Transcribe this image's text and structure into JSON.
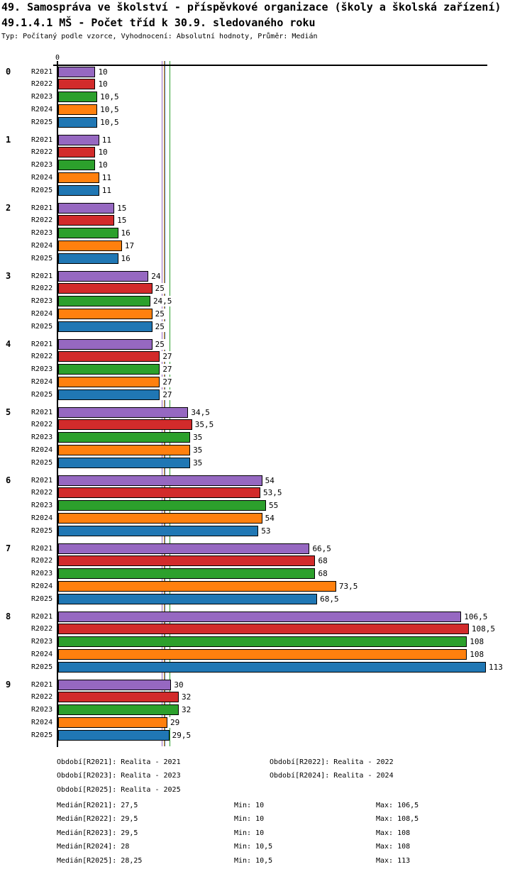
{
  "header": {
    "title1": "49. Samospráva ve školství - příspěvkové organizace (školy a školská zařízení)",
    "title2": "49.1.4.1 MŠ - Počet tříd k 30.9. sledovaného roku",
    "meta": "Typ: Počítaný podle vzorce, Vyhodnocení: Absolutní hodnoty, Průměr: Medián"
  },
  "axis": {
    "origin_label": "0"
  },
  "chart_data": {
    "type": "bar",
    "orientation": "horizontal",
    "title": "49.1.4.1 MŠ - Počet tříd k 30.9. sledovaného roku",
    "xlim": [
      0,
      113
    ],
    "grid": false,
    "categories": [
      "0",
      "1",
      "2",
      "3",
      "4",
      "5",
      "6",
      "7",
      "8",
      "9"
    ],
    "series": [
      {
        "name": "R2021",
        "color": "#9668C1",
        "values": [
          10,
          11,
          15,
          24,
          25,
          34.5,
          54,
          66.5,
          106.5,
          30
        ],
        "median": 27.5,
        "min": 10,
        "max": 106.5
      },
      {
        "name": "R2022",
        "color": "#D22B2B",
        "values": [
          10,
          10,
          15,
          25,
          27,
          35.5,
          53.5,
          68,
          108.5,
          32
        ],
        "median": 29.5,
        "min": 10,
        "max": 108.5
      },
      {
        "name": "R2023",
        "color": "#2CA02C",
        "values": [
          10.5,
          10,
          16,
          24.5,
          27,
          35,
          55,
          68,
          108,
          32
        ],
        "median": 29.5,
        "min": 10,
        "max": 108
      },
      {
        "name": "R2024",
        "color": "#FF800E",
        "values": [
          10.5,
          11,
          17,
          25,
          27,
          35,
          54,
          73.5,
          108,
          29
        ],
        "median": 28,
        "min": 10.5,
        "max": 108
      },
      {
        "name": "R2025",
        "color": "#2077B4",
        "values": [
          10.5,
          11,
          16,
          25,
          27,
          35,
          53,
          68.5,
          113,
          29.5
        ],
        "median": 28.25,
        "min": 10.5,
        "max": 113
      }
    ],
    "median_lines_shown": true
  },
  "legend": {
    "periods": [
      "Období[R2021]: Realita - 2021",
      "Období[R2022]: Realita - 2022",
      "Období[R2023]: Realita - 2023",
      "Období[R2024]: Realita - 2024",
      "Období[R2025]: Realita - 2025"
    ],
    "stats": [
      {
        "median": "Medián[R2021]: 27,5",
        "min": "Min: 10",
        "max": "Max: 106,5"
      },
      {
        "median": "Medián[R2022]: 29,5",
        "min": "Min: 10",
        "max": "Max: 108,5"
      },
      {
        "median": "Medián[R2023]: 29,5",
        "min": "Min: 10",
        "max": "Max: 108"
      },
      {
        "median": "Medián[R2024]: 28",
        "min": "Min: 10,5",
        "max": "Max: 108"
      },
      {
        "median": "Medián[R2025]: 28,25",
        "min": "Min: 10,5",
        "max": "Max: 113"
      }
    ]
  }
}
